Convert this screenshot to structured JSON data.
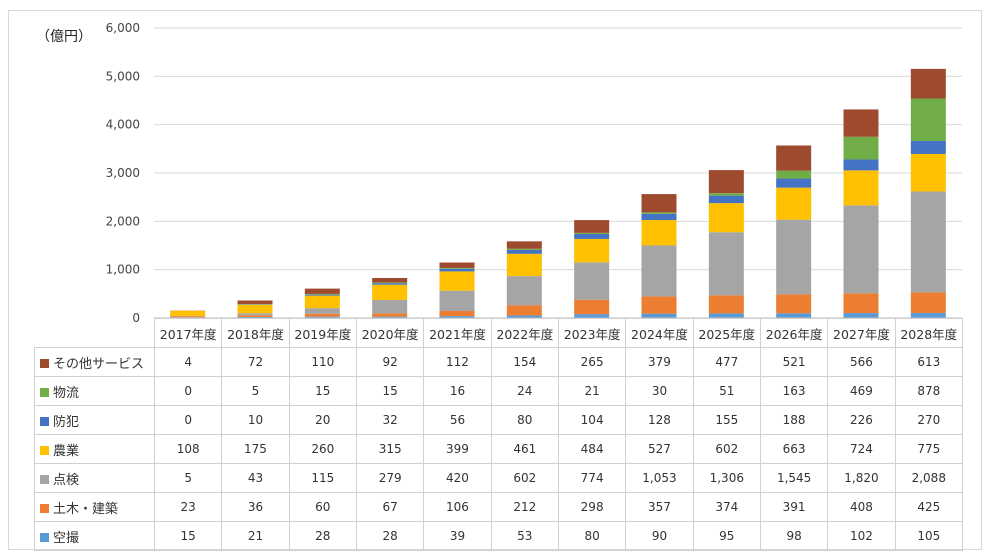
{
  "unit_label": "（億円）",
  "chart_data": {
    "type": "bar",
    "stacked": true,
    "title": "",
    "ylim": [
      0,
      6000
    ],
    "yticks": [
      0,
      1000,
      2000,
      3000,
      4000,
      5000,
      6000
    ],
    "ytick_labels": [
      "0",
      "1,000",
      "2,000",
      "3,000",
      "4,000",
      "5,000",
      "6,000"
    ],
    "grid": true,
    "categories": [
      "2017年度",
      "2018年度",
      "2019年度",
      "2020年度",
      "2021年度",
      "2022年度",
      "2023年度",
      "2024年度",
      "2025年度",
      "2026年度",
      "2027年度",
      "2028年度"
    ],
    "series": [
      {
        "name": "空撮",
        "color": "#5b9bd5",
        "values": [
          15,
          21,
          28,
          28,
          39,
          53,
          80,
          90,
          95,
          98,
          102,
          105
        ],
        "labels": [
          "15",
          "21",
          "28",
          "28",
          "39",
          "53",
          "80",
          "90",
          "95",
          "98",
          "102",
          "105"
        ]
      },
      {
        "name": "土木・建築",
        "color": "#ed7d31",
        "values": [
          23,
          36,
          60,
          67,
          106,
          212,
          298,
          357,
          374,
          391,
          408,
          425
        ],
        "labels": [
          "23",
          "36",
          "60",
          "67",
          "106",
          "212",
          "298",
          "357",
          "374",
          "391",
          "408",
          "425"
        ]
      },
      {
        "name": "点検",
        "color": "#a5a5a5",
        "values": [
          5,
          43,
          115,
          279,
          420,
          602,
          774,
          1053,
          1306,
          1545,
          1820,
          2088
        ],
        "labels": [
          "5",
          "43",
          "115",
          "279",
          "420",
          "602",
          "774",
          "1,053",
          "1,306",
          "1,545",
          "1,820",
          "2,088"
        ]
      },
      {
        "name": "農業",
        "color": "#ffc000",
        "values": [
          108,
          175,
          260,
          315,
          399,
          461,
          484,
          527,
          602,
          663,
          724,
          775
        ],
        "labels": [
          "108",
          "175",
          "260",
          "315",
          "399",
          "461",
          "484",
          "527",
          "602",
          "663",
          "724",
          "775"
        ]
      },
      {
        "name": "防犯",
        "color": "#4472c4",
        "values": [
          0,
          10,
          20,
          32,
          56,
          80,
          104,
          128,
          155,
          188,
          226,
          270
        ],
        "labels": [
          "0",
          "10",
          "20",
          "32",
          "56",
          "80",
          "104",
          "128",
          "155",
          "188",
          "226",
          "270"
        ]
      },
      {
        "name": "物流",
        "color": "#70ad47",
        "values": [
          0,
          5,
          15,
          15,
          16,
          24,
          21,
          30,
          51,
          163,
          469,
          878
        ],
        "labels": [
          "0",
          "5",
          "15",
          "15",
          "16",
          "24",
          "21",
          "30",
          "51",
          "163",
          "469",
          "878"
        ]
      },
      {
        "name": "その他サービス",
        "color": "#9e4a2f",
        "values": [
          4,
          72,
          110,
          92,
          112,
          154,
          265,
          379,
          477,
          521,
          566,
          613
        ],
        "labels": [
          "4",
          "72",
          "110",
          "92",
          "112",
          "154",
          "265",
          "379",
          "477",
          "521",
          "566",
          "613"
        ]
      }
    ],
    "table_row_order": [
      "その他サービス",
      "物流",
      "防犯",
      "農業",
      "点検",
      "土木・建築",
      "空撮"
    ]
  }
}
